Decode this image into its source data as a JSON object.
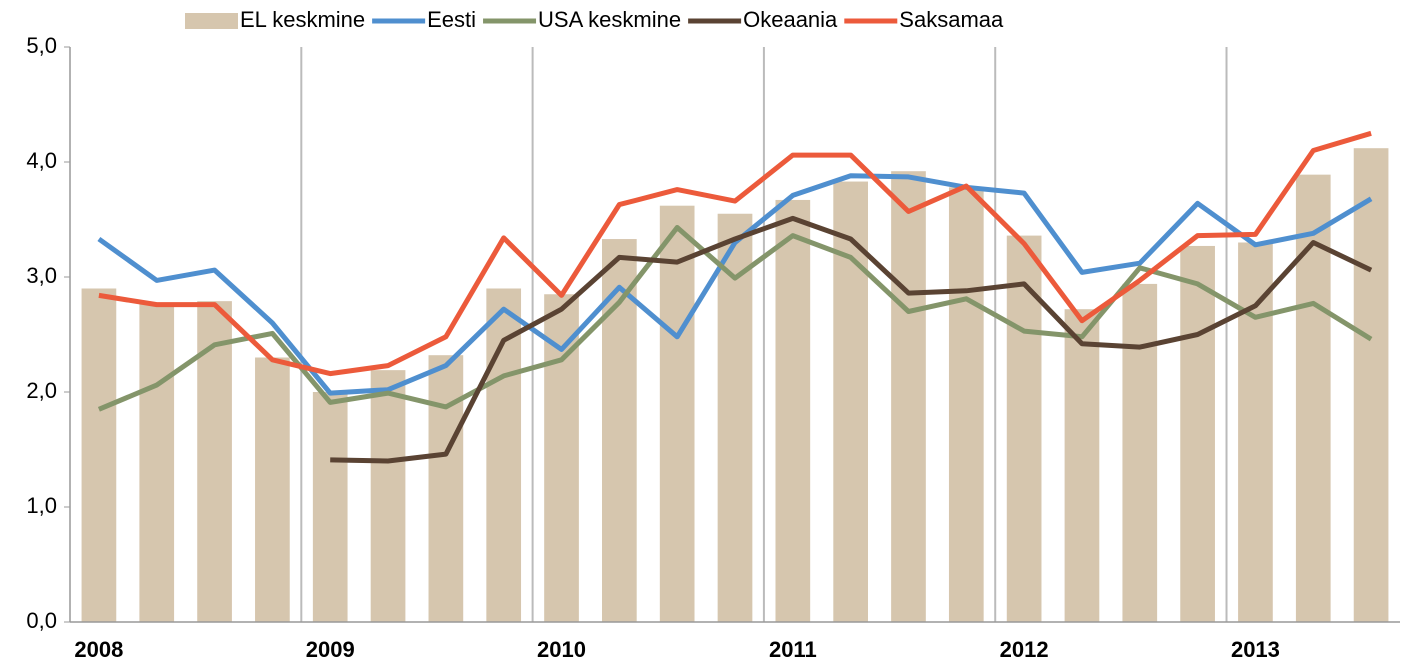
{
  "chart_data": {
    "type": "bar-line",
    "categories": [
      "2008",
      null,
      null,
      null,
      "2009",
      null,
      null,
      null,
      "2010",
      null,
      null,
      null,
      "2011",
      null,
      null,
      null,
      "2012",
      null,
      null,
      null,
      "2013",
      null,
      null
    ],
    "series": [
      {
        "name": "EL keskmine",
        "type": "bar",
        "color": "#d6c6ae",
        "values": [
          2.9,
          2.77,
          2.79,
          2.3,
          2.0,
          2.19,
          2.32,
          2.9,
          2.85,
          3.33,
          3.62,
          3.55,
          3.67,
          3.83,
          3.92,
          3.78,
          3.36,
          2.72,
          2.94,
          3.27,
          3.3,
          3.89,
          4.12
        ]
      },
      {
        "name": "Eesti",
        "type": "line",
        "color": "#4f8fcf",
        "values": [
          3.33,
          2.97,
          3.06,
          2.6,
          1.99,
          2.02,
          2.23,
          2.72,
          2.37,
          2.91,
          2.48,
          3.3,
          3.71,
          3.88,
          3.87,
          3.78,
          3.73,
          3.04,
          3.12,
          3.64,
          3.28,
          3.38,
          3.68
        ]
      },
      {
        "name": "USA keskmine",
        "type": "line",
        "color": "#84956a",
        "values": [
          1.85,
          2.06,
          2.41,
          2.51,
          1.91,
          1.99,
          1.87,
          2.14,
          2.28,
          2.78,
          3.43,
          2.99,
          3.36,
          3.17,
          2.7,
          2.81,
          2.53,
          2.48,
          3.08,
          2.94,
          2.65,
          2.77,
          2.46
        ]
      },
      {
        "name": "Okeaania",
        "type": "line",
        "color": "#5a4333",
        "values": [
          null,
          null,
          null,
          null,
          1.41,
          1.4,
          1.46,
          2.45,
          2.72,
          3.17,
          3.13,
          3.33,
          3.51,
          3.33,
          2.86,
          2.88,
          2.94,
          2.42,
          2.39,
          2.5,
          2.75,
          3.3,
          3.06
        ]
      },
      {
        "name": "Saksamaa",
        "type": "line",
        "color": "#ec5a3b",
        "values": [
          2.84,
          2.76,
          2.76,
          2.28,
          2.16,
          2.23,
          2.48,
          3.34,
          2.84,
          3.63,
          3.76,
          3.66,
          4.06,
          4.06,
          3.57,
          3.79,
          3.29,
          2.62,
          2.97,
          3.36,
          3.37,
          4.1,
          4.25
        ]
      }
    ],
    "ylim": [
      0,
      5
    ],
    "yticks": [
      {
        "value": 0,
        "label": "0,0"
      },
      {
        "value": 1,
        "label": "1,0"
      },
      {
        "value": 2,
        "label": "2,0"
      },
      {
        "value": 3,
        "label": "3,0"
      },
      {
        "value": 4,
        "label": "4,0"
      },
      {
        "value": 5,
        "label": "5,0"
      }
    ],
    "legend": "top"
  }
}
